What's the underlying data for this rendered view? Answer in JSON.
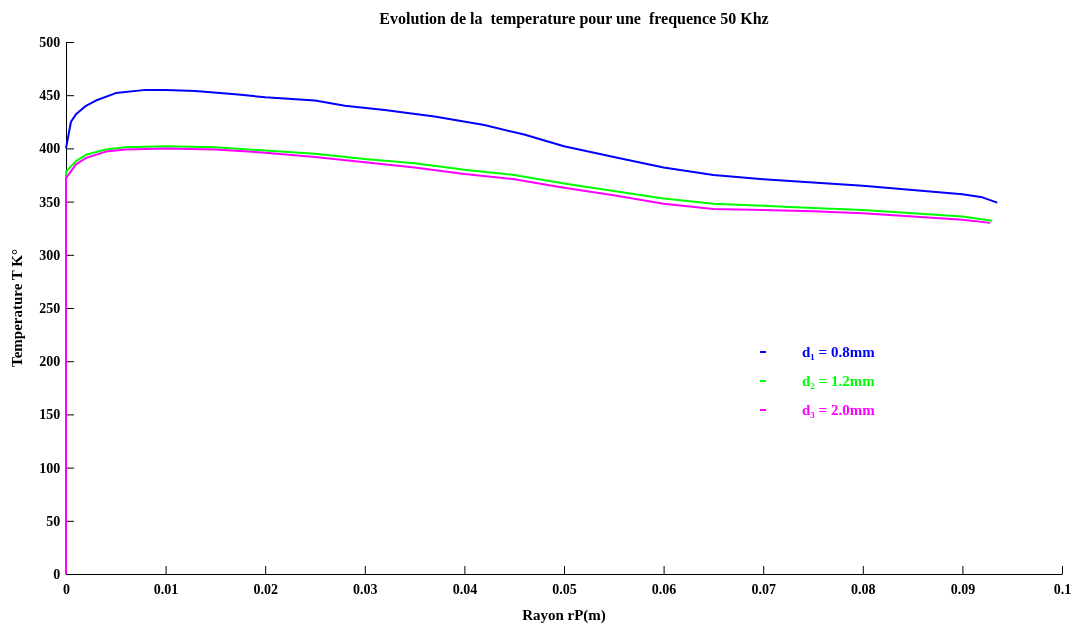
{
  "chart_data": {
    "type": "line",
    "title": "Evolution de la  temperature pour une  frequence 50 Khz",
    "xlabel": "Rayon rP(m)",
    "ylabel": "Temperature T K°",
    "xlim": [
      0,
      0.1
    ],
    "xticks": [
      0,
      0.01,
      0.02,
      0.03,
      0.04,
      0.05,
      0.06,
      0.07,
      0.08,
      0.09,
      0.1
    ],
    "ylim": [
      0,
      500
    ],
    "yticks": [
      0,
      50,
      100,
      150,
      200,
      250,
      300,
      350,
      400,
      450,
      500
    ],
    "legend": "right",
    "grid": false,
    "series": [
      {
        "name": "d₁ = 0.8mm",
        "color": "#0000ff",
        "x": [
          0,
          0.0005,
          0.001,
          0.002,
          0.003,
          0.005,
          0.008,
          0.01,
          0.013,
          0.017,
          0.02,
          0.025,
          0.028,
          0.032,
          0.037,
          0.042,
          0.046,
          0.05,
          0.055,
          0.06,
          0.065,
          0.07,
          0.075,
          0.08,
          0.085,
          0.09,
          0.092,
          0.0935
        ],
        "values": [
          400,
          425,
          432,
          440,
          445,
          452,
          455,
          455,
          454,
          451,
          448,
          445,
          440,
          436,
          430,
          422,
          413,
          402,
          392,
          382,
          375,
          371,
          368,
          365,
          361,
          357,
          354,
          349
        ]
      },
      {
        "name": "d₂ = 1.2mm",
        "color": "#00ff00",
        "x": [
          0,
          0,
          0.001,
          0.002,
          0.004,
          0.006,
          0.01,
          0.015,
          0.02,
          0.025,
          0.03,
          0.035,
          0.04,
          0.045,
          0.05,
          0.055,
          0.06,
          0.065,
          0.07,
          0.075,
          0.08,
          0.085,
          0.09,
          0.093
        ],
        "values": [
          0,
          378,
          388,
          394,
          399,
          401,
          402,
          401,
          398,
          395,
          390,
          386,
          380,
          375,
          367,
          360,
          353,
          348,
          346,
          344,
          342,
          339,
          336,
          332
        ]
      },
      {
        "name": "d₃ = 2.0mm",
        "color": "#ff00ff",
        "x": [
          0,
          0,
          0.001,
          0.002,
          0.004,
          0.006,
          0.01,
          0.015,
          0.02,
          0.025,
          0.03,
          0.035,
          0.04,
          0.045,
          0.05,
          0.055,
          0.06,
          0.065,
          0.07,
          0.075,
          0.08,
          0.085,
          0.09,
          0.0928
        ],
        "values": [
          0,
          372,
          385,
          391,
          397,
          399,
          400,
          399,
          396,
          392,
          387,
          382,
          376,
          371,
          363,
          356,
          348,
          343,
          342,
          341,
          339,
          336,
          333,
          330
        ]
      }
    ]
  }
}
